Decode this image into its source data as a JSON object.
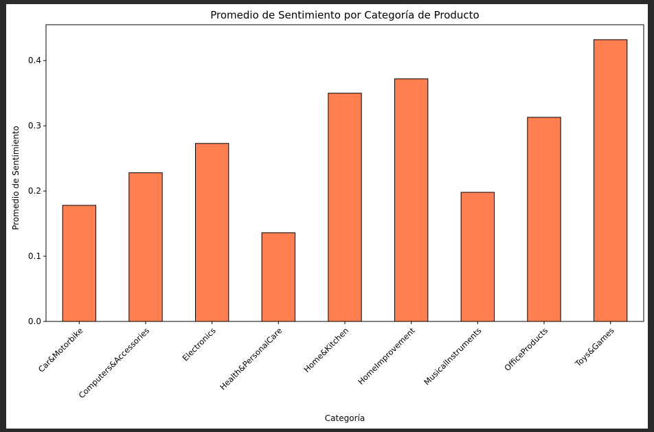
{
  "chart_data": {
    "type": "bar",
    "title": "Promedio de Sentimiento por Categoría de Producto",
    "xlabel": "Categoría",
    "ylabel": "Promedio de Sentimiento",
    "categories": [
      "Car&Motorbike",
      "Computers&Accessories",
      "Electronics",
      "Health&PersonalCare",
      "Home&Kitchen",
      "HomeImprovement",
      "MusicalInstruments",
      "OfficeProducts",
      "Toys&Games"
    ],
    "values": [
      0.178,
      0.228,
      0.273,
      0.136,
      0.35,
      0.372,
      0.198,
      0.313,
      0.432
    ],
    "ylim": [
      0,
      0.455
    ],
    "yticks": [
      0.0,
      0.1,
      0.2,
      0.3,
      0.4
    ],
    "ytick_labels": [
      "0.0",
      "0.1",
      "0.2",
      "0.3",
      "0.4"
    ],
    "bar_color": "#ff7f50",
    "bar_edge_color": "#000000",
    "grid": false,
    "legend": "none"
  }
}
